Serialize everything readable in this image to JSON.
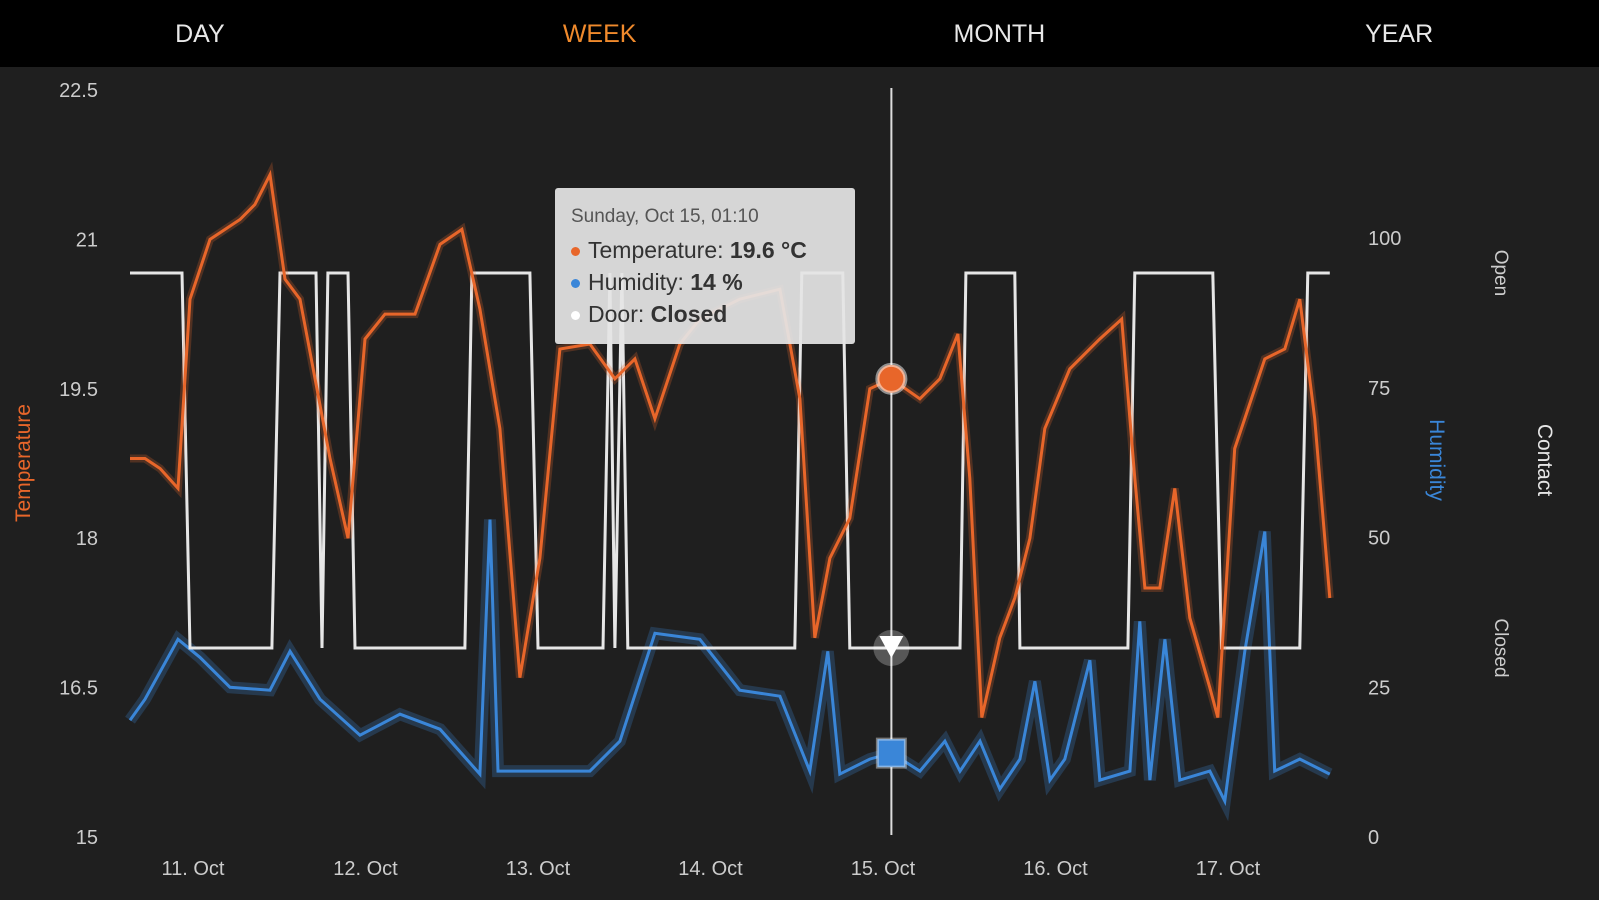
{
  "tabs": [
    {
      "label": "DAY",
      "active": false
    },
    {
      "label": "WEEK",
      "active": true
    },
    {
      "label": "MONTH",
      "active": false
    },
    {
      "label": "YEAR",
      "active": false
    }
  ],
  "colors": {
    "temperature": "#e8662a",
    "humidity": "#3a86d8",
    "door": "#e6e6e6",
    "active_tab": "#f08a2c",
    "background": "#1f1f1f"
  },
  "tooltip": {
    "header": "Sunday, Oct 15, 01:10",
    "rows": [
      {
        "label": "Temperature: ",
        "value": "19.6 °C"
      },
      {
        "label": "Humidity: ",
        "value": "14 %"
      },
      {
        "label": "Door: ",
        "value": "Closed"
      }
    ]
  },
  "chart_data": {
    "type": "line",
    "cursor_time": "Oct 15 01:10",
    "x_ticks": [
      "11. Oct",
      "12. Oct",
      "13. Oct",
      "14. Oct",
      "15. Oct",
      "16. Oct",
      "17. Oct"
    ],
    "axes": {
      "temperature": {
        "label": "Temperature",
        "ylim": [
          15,
          22.5
        ],
        "ticks": [
          "15",
          "16.5",
          "18",
          "19.5",
          "21",
          "22.5"
        ]
      },
      "humidity": {
        "label": "Humidity",
        "ylim": [
          0,
          125
        ],
        "ticks": [
          "0",
          "25",
          "50",
          "75",
          "100"
        ]
      },
      "contact": {
        "label": "Contact",
        "states": [
          "Closed",
          "Open"
        ]
      }
    },
    "series": [
      {
        "name": "Temperature",
        "unit": "°C",
        "points": [
          [
            "Oct 10 15:14",
            18.8
          ],
          [
            "Oct 10 17:19",
            18.8
          ],
          [
            "Oct 10 19:25",
            18.7
          ],
          [
            "Oct 10 21:55",
            18.5
          ],
          [
            "Oct 10 23:35",
            20.4
          ],
          [
            "Oct 11 02:22",
            21.0
          ],
          [
            "Oct 11 06:32",
            21.2
          ],
          [
            "Oct 11 08:37",
            21.35
          ],
          [
            "Oct 11 10:43",
            21.65
          ],
          [
            "Oct 11 12:48",
            20.6
          ],
          [
            "Oct 11 14:53",
            20.4
          ],
          [
            "Oct 11 17:23",
            19.45
          ],
          [
            "Oct 11 19:04",
            18.8
          ],
          [
            "Oct 11 21:34",
            18.0
          ],
          [
            "Oct 11 23:56",
            20.0
          ],
          [
            "Oct 12 02:43",
            20.25
          ],
          [
            "Oct 12 06:53",
            20.25
          ],
          [
            "Oct 12 10:22",
            20.95
          ],
          [
            "Oct 12 13:25",
            21.1
          ],
          [
            "Oct 12 15:55",
            20.3
          ],
          [
            "Oct 12 18:42",
            19.1
          ],
          [
            "Oct 12 21:29",
            16.6
          ],
          [
            "Oct 13 00:16",
            17.8
          ],
          [
            "Oct 13 03:03",
            19.9
          ],
          [
            "Oct 13 07:13",
            19.95
          ],
          [
            "Oct 13 10:42",
            19.6
          ],
          [
            "Oct 13 13:29",
            19.8
          ],
          [
            "Oct 13 16:16",
            19.2
          ],
          [
            "Oct 13 19:44",
            19.95
          ],
          [
            "Oct 13 22:31",
            20.2
          ],
          [
            "Oct 14 04:05",
            20.4
          ],
          [
            "Oct 14 09:39",
            20.5
          ],
          [
            "Oct 14 12:26",
            19.4
          ],
          [
            "Oct 14 14:31",
            17.0
          ],
          [
            "Oct 14 16:37",
            17.8
          ],
          [
            "Oct 14 19:23",
            18.2
          ],
          [
            "Oct 14 22:10",
            19.5
          ],
          [
            "Oct 15 01:10",
            19.6
          ],
          [
            "Oct 15 05:08",
            19.4
          ],
          [
            "Oct 15 07:55",
            19.6
          ],
          [
            "Oct 15 10:25",
            20.05
          ],
          [
            "Oct 15 12:05",
            18.6
          ],
          [
            "Oct 15 13:45",
            16.2
          ],
          [
            "Oct 15 16:15",
            17.0
          ],
          [
            "Oct 15 18:20",
            17.4
          ],
          [
            "Oct 15 20:26",
            18.0
          ],
          [
            "Oct 15 22:31",
            19.1
          ],
          [
            "Oct 16 01:59",
            19.7
          ],
          [
            "Oct 16 06:10",
            20.0
          ],
          [
            "Oct 16 09:13",
            20.2
          ],
          [
            "Oct 16 11:02",
            18.6
          ],
          [
            "Oct 16 12:26",
            17.5
          ],
          [
            "Oct 16 14:31",
            17.5
          ],
          [
            "Oct 16 16:36",
            18.5
          ],
          [
            "Oct 16 18:41",
            17.2
          ],
          [
            "Oct 16 21:28",
            16.5
          ],
          [
            "Oct 16 22:35",
            16.2
          ],
          [
            "Oct 17 00:56",
            18.9
          ],
          [
            "Oct 17 05:07",
            19.8
          ],
          [
            "Oct 17 07:54",
            19.9
          ],
          [
            "Oct 17 09:59",
            20.4
          ],
          [
            "Oct 17 12:04",
            19.2
          ],
          [
            "Oct 17 14:10",
            17.4
          ]
        ]
      },
      {
        "name": "Humidity",
        "unit": "%",
        "points": [
          [
            "Oct 10 15:14",
            19.5
          ],
          [
            "Oct 10 17:19",
            23
          ],
          [
            "Oct 10 21:55",
            33
          ],
          [
            "Oct 11 00:58",
            30
          ],
          [
            "Oct 11 05:09",
            25
          ],
          [
            "Oct 11 10:43",
            24.5
          ],
          [
            "Oct 11 13:30",
            31
          ],
          [
            "Oct 11 17:40",
            23
          ],
          [
            "Oct 11 23:14",
            17
          ],
          [
            "Oct 12 04:48",
            20.5
          ],
          [
            "Oct 12 10:22",
            18
          ],
          [
            "Oct 12 15:55",
            10.5
          ],
          [
            "Oct 12 17:19",
            53
          ],
          [
            "Oct 12 18:26",
            11
          ],
          [
            "Oct 13 00:16",
            11
          ],
          [
            "Oct 13 07:13",
            11
          ],
          [
            "Oct 13 11:24",
            16
          ],
          [
            "Oct 13 16:16",
            34
          ],
          [
            "Oct 13 22:31",
            33
          ],
          [
            "Oct 14 04:05",
            24.5
          ],
          [
            "Oct 14 09:39",
            23.5
          ],
          [
            "Oct 14 13:49",
            11
          ],
          [
            "Oct 14 16:19",
            31
          ],
          [
            "Oct 14 17:59",
            10.5
          ],
          [
            "Oct 14 22:10",
            13
          ],
          [
            "Oct 15 01:10",
            14
          ],
          [
            "Oct 15 05:08",
            11
          ],
          [
            "Oct 15 08:37",
            16
          ],
          [
            "Oct 15 10:43",
            11
          ],
          [
            "Oct 15 13:30",
            16
          ],
          [
            "Oct 15 16:15",
            8
          ],
          [
            "Oct 15 19:03",
            13
          ],
          [
            "Oct 15 21:08",
            26
          ],
          [
            "Oct 15 23:13",
            9.5
          ],
          [
            "Oct 16 01:18",
            13
          ],
          [
            "Oct 16 04:47",
            29.5
          ],
          [
            "Oct 16 06:10",
            9.5
          ],
          [
            "Oct 16 10:21",
            11
          ],
          [
            "Oct 16 11:44",
            36
          ],
          [
            "Oct 16 13:08",
            9.5
          ],
          [
            "Oct 16 15:13",
            33
          ],
          [
            "Oct 16 17:18",
            9.5
          ],
          [
            "Oct 16 21:28",
            11
          ],
          [
            "Oct 16 23:33",
            6
          ],
          [
            "Oct 17 02:20",
            31
          ],
          [
            "Oct 17 05:07",
            51
          ],
          [
            "Oct 17 06:30",
            11
          ],
          [
            "Oct 17 09:59",
            13
          ],
          [
            "Oct 17 14:10",
            10.5
          ]
        ]
      },
      {
        "name": "Door",
        "points": [
          [
            "Oct 10 15:14",
            "Open"
          ],
          [
            "Oct 10 22:28",
            "Open"
          ],
          [
            "Oct 10 23:35",
            "Closed"
          ],
          [
            "Oct 11 10:59",
            "Closed"
          ],
          [
            "Oct 11 12:06",
            "Open"
          ],
          [
            "Oct 11 17:07",
            "Open"
          ],
          [
            "Oct 11 17:57",
            "Closed"
          ],
          [
            "Oct 11 18:46",
            "Open"
          ],
          [
            "Oct 11 21:34",
            "Open"
          ],
          [
            "Oct 11 22:32",
            "Closed"
          ],
          [
            "Oct 12 13:50",
            "Closed"
          ],
          [
            "Oct 12 14:48",
            "Open"
          ],
          [
            "Oct 12 22:52",
            "Open"
          ],
          [
            "Oct 13 00:00",
            "Closed"
          ],
          [
            "Oct 13 09:03",
            "Closed"
          ],
          [
            "Oct 13 10:00",
            "Open"
          ],
          [
            "Oct 13 10:42",
            "Closed"
          ],
          [
            "Oct 13 11:40",
            "Open"
          ],
          [
            "Oct 13 12:30",
            "Closed"
          ],
          [
            "Oct 14 11:44",
            "Closed"
          ],
          [
            "Oct 14 12:42",
            "Open"
          ],
          [
            "Oct 14 18:24",
            "Open"
          ],
          [
            "Oct 14 19:23",
            "Closed"
          ],
          [
            "Oct 15 10:43",
            "Closed"
          ],
          [
            "Oct 15 11:32",
            "Open"
          ],
          [
            "Oct 15 18:20",
            "Open"
          ],
          [
            "Oct 15 19:03",
            "Closed"
          ],
          [
            "Oct 16 10:04",
            "Closed"
          ],
          [
            "Oct 16 11:02",
            "Open"
          ],
          [
            "Oct 16 21:53",
            "Open"
          ],
          [
            "Oct 16 23:06",
            "Closed"
          ],
          [
            "Oct 17 09:59",
            "Closed"
          ],
          [
            "Oct 17 11:06",
            "Open"
          ],
          [
            "Oct 17 14:10",
            "Open"
          ]
        ]
      }
    ]
  }
}
